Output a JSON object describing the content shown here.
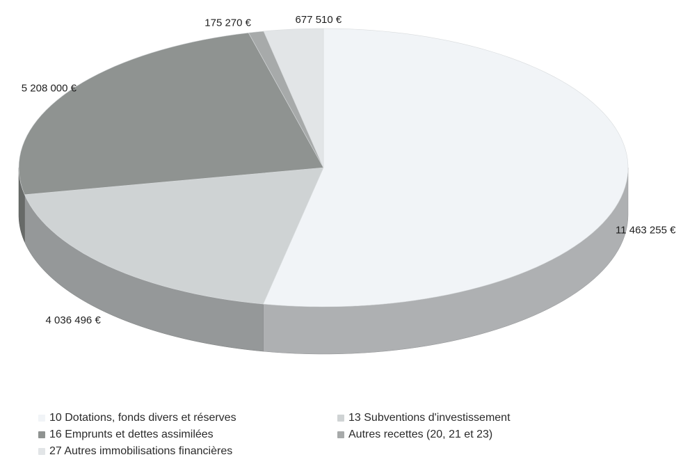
{
  "chart_data": {
    "type": "pie",
    "title": "",
    "categories": [
      "10 Dotations, fonds divers et réserves",
      "13 Subventions d'investissement",
      "16 Emprunts et dettes assimilées",
      "Autres recettes (20, 21 et 23)",
      "27 Autres immobilisations financières"
    ],
    "values": [
      11463255,
      4036496,
      5208000,
      175270,
      677510
    ],
    "value_labels": [
      "11 463 255 €",
      "4 036 496 €",
      "5 208 000 €",
      "175 270 €",
      "677 510 €"
    ],
    "colors": [
      "#f1f4f7",
      "#cfd3d4",
      "#8f9391",
      "#a7aaaa",
      "#e2e5e7"
    ],
    "legend_placement": "bottom",
    "three_d": true
  },
  "legend": {
    "items": [
      {
        "label": "10 Dotations, fonds divers et réserves",
        "color": "#f1f4f7"
      },
      {
        "label": "13 Subventions d'investissement",
        "color": "#cfd3d4"
      },
      {
        "label": "16 Emprunts et dettes assimilées",
        "color": "#8f9391"
      },
      {
        "label": "Autres recettes (20, 21 et 23)",
        "color": "#a7aaaa"
      },
      {
        "label": "27 Autres immobilisations financières",
        "color": "#e2e5e7"
      }
    ]
  }
}
